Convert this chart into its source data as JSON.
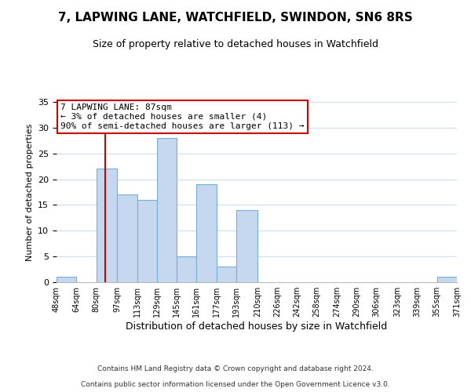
{
  "title": "7, LAPWING LANE, WATCHFIELD, SWINDON, SN6 8RS",
  "subtitle": "Size of property relative to detached houses in Watchfield",
  "xlabel": "Distribution of detached houses by size in Watchfield",
  "ylabel": "Number of detached properties",
  "bar_color": "#c5d8f0",
  "bar_edge_color": "#7aadd4",
  "annotation_box_title": "7 LAPWING LANE: 87sqm",
  "annotation_line1": "← 3% of detached houses are smaller (4)",
  "annotation_line2": "90% of semi-detached houses are larger (113) →",
  "annotation_box_color": "#ffffff",
  "annotation_box_edge_color": "#cc0000",
  "marker_line_color": "#cc0000",
  "marker_value": 87,
  "footer_line1": "Contains HM Land Registry data © Crown copyright and database right 2024.",
  "footer_line2": "Contains public sector information licensed under the Open Government Licence v3.0.",
  "background_color": "#ffffff",
  "grid_color": "#cde0f0",
  "ylim": [
    0,
    35
  ],
  "yticks": [
    0,
    5,
    10,
    15,
    20,
    25,
    30,
    35
  ],
  "bin_edges": [
    48,
    64,
    80,
    97,
    113,
    129,
    145,
    161,
    177,
    193,
    210,
    226,
    242,
    258,
    274,
    290,
    306,
    323,
    339,
    355,
    371
  ],
  "bin_labels": [
    "48sqm",
    "64sqm",
    "80sqm",
    "97sqm",
    "113sqm",
    "129sqm",
    "145sqm",
    "161sqm",
    "177sqm",
    "193sqm",
    "210sqm",
    "226sqm",
    "242sqm",
    "258sqm",
    "274sqm",
    "290sqm",
    "306sqm",
    "323sqm",
    "339sqm",
    "355sqm",
    "371sqm"
  ],
  "bar_heights": [
    1,
    0,
    22,
    17,
    16,
    28,
    5,
    19,
    3,
    14,
    0,
    0,
    0,
    0,
    0,
    0,
    0,
    0,
    0,
    1
  ]
}
